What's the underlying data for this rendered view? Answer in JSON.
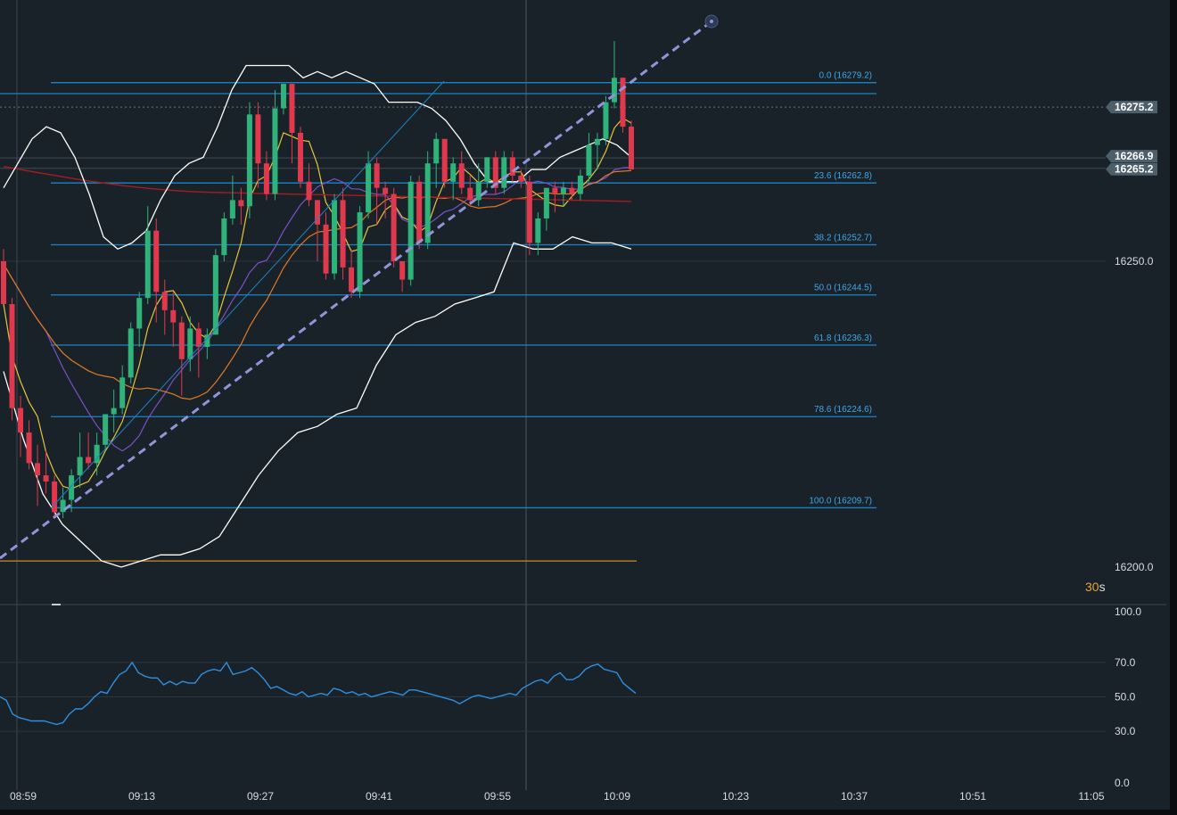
{
  "timer": {
    "value": "30",
    "unit": "s"
  },
  "colors": {
    "background": "#1a2229",
    "up": "#2fb37a",
    "down": "#e0394d",
    "fib": "#1d82c4",
    "bollinger": "#ffffff",
    "trendline": "#8f95d8",
    "rsi": "#2e8fe0",
    "ma_yellow": "#e5c53a",
    "ma_purple": "#7b4fc9",
    "ma_orange": "#e07a24",
    "ma_red": "#a21d22"
  },
  "chart_data": [
    {
      "type": "candlestick",
      "instrument_timeframe": "1 minute",
      "x_ticks": [
        "08:59",
        "09:13",
        "09:27",
        "09:41",
        "09:55",
        "10:09",
        "10:23",
        "10:37",
        "10:51",
        "11:05"
      ],
      "y_ticks": [
        "16250.0",
        "16200.0"
      ],
      "ylim": [
        16197,
        16297
      ],
      "price_tags": [
        {
          "label": "16275.2",
          "value": 16275.2
        },
        {
          "label": "16266.9",
          "value": 16266.9
        },
        {
          "label": "16265.2",
          "value": 16265.2
        }
      ],
      "fibonacci": [
        {
          "label": "0.0 (16279.2)",
          "value": 16279.2
        },
        {
          "label": "23.6 (16262.8)",
          "value": 16262.8
        },
        {
          "label": "38.2 (16252.7)",
          "value": 16252.7
        },
        {
          "label": "50.0 (16244.5)",
          "value": 16244.5
        },
        {
          "label": "61.8 (16236.3)",
          "value": 16236.3
        },
        {
          "label": "78.6 (16224.6)",
          "value": 16224.6
        },
        {
          "label": "100.0 (16209.7)",
          "value": 16209.7
        }
      ],
      "horizontal_lines": [
        16277.4,
        16201.0
      ],
      "candles": [
        {
          "o": 16250,
          "h": 16252,
          "l": 16243,
          "c": 16243
        },
        {
          "o": 16243,
          "h": 16244,
          "l": 16224,
          "c": 16226
        },
        {
          "o": 16226,
          "h": 16228,
          "l": 16218,
          "c": 16222
        },
        {
          "o": 16222,
          "h": 16224,
          "l": 16216,
          "c": 16217
        },
        {
          "o": 16217,
          "h": 16220,
          "l": 16210,
          "c": 16215
        },
        {
          "o": 16215,
          "h": 16219,
          "l": 16212,
          "c": 16214
        },
        {
          "o": 16214,
          "h": 16215,
          "l": 16208,
          "c": 16209
        },
        {
          "o": 16209,
          "h": 16213,
          "l": 16208,
          "c": 16211
        },
        {
          "o": 16211,
          "h": 16216,
          "l": 16209,
          "c": 16215
        },
        {
          "o": 16215,
          "h": 16222,
          "l": 16213,
          "c": 16218
        },
        {
          "o": 16218,
          "h": 16222,
          "l": 16216,
          "c": 16217
        },
        {
          "o": 16217,
          "h": 16222,
          "l": 16215,
          "c": 16220
        },
        {
          "o": 16220,
          "h": 16225,
          "l": 16219,
          "c": 16225
        },
        {
          "o": 16225,
          "h": 16229,
          "l": 16222,
          "c": 16226
        },
        {
          "o": 16226,
          "h": 16233,
          "l": 16225,
          "c": 16231
        },
        {
          "o": 16231,
          "h": 16240,
          "l": 16230,
          "c": 16239
        },
        {
          "o": 16239,
          "h": 16245,
          "l": 16236,
          "c": 16244
        },
        {
          "o": 16244,
          "h": 16259,
          "l": 16243,
          "c": 16255
        },
        {
          "o": 16255,
          "h": 16257,
          "l": 16240,
          "c": 16245
        },
        {
          "o": 16245,
          "h": 16247,
          "l": 16238,
          "c": 16242
        },
        {
          "o": 16242,
          "h": 16245,
          "l": 16236,
          "c": 16240
        },
        {
          "o": 16240,
          "h": 16241,
          "l": 16228,
          "c": 16234
        },
        {
          "o": 16234,
          "h": 16241,
          "l": 16232,
          "c": 16239
        },
        {
          "o": 16239,
          "h": 16240,
          "l": 16231,
          "c": 16236
        },
        {
          "o": 16236,
          "h": 16239,
          "l": 16234,
          "c": 16238
        },
        {
          "o": 16238,
          "h": 16252,
          "l": 16238,
          "c": 16251
        },
        {
          "o": 16251,
          "h": 16258,
          "l": 16250,
          "c": 16257
        },
        {
          "o": 16257,
          "h": 16264,
          "l": 16256,
          "c": 16260
        },
        {
          "o": 16260,
          "h": 16262,
          "l": 16256,
          "c": 16259
        },
        {
          "o": 16259,
          "h": 16276,
          "l": 16257,
          "c": 16274
        },
        {
          "o": 16274,
          "h": 16276,
          "l": 16262,
          "c": 16266
        },
        {
          "o": 16266,
          "h": 16268,
          "l": 16260,
          "c": 16261
        },
        {
          "o": 16261,
          "h": 16278,
          "l": 16260,
          "c": 16275
        },
        {
          "o": 16275,
          "h": 16279,
          "l": 16274,
          "c": 16279
        },
        {
          "o": 16279,
          "h": 16279,
          "l": 16266,
          "c": 16271
        },
        {
          "o": 16271,
          "h": 16272,
          "l": 16262,
          "c": 16263
        },
        {
          "o": 16263,
          "h": 16266,
          "l": 16259,
          "c": 16260
        },
        {
          "o": 16260,
          "h": 16260,
          "l": 16250,
          "c": 16256
        },
        {
          "o": 16256,
          "h": 16258,
          "l": 16247,
          "c": 16248
        },
        {
          "o": 16248,
          "h": 16261,
          "l": 16247,
          "c": 16260
        },
        {
          "o": 16260,
          "h": 16262,
          "l": 16247,
          "c": 16249
        },
        {
          "o": 16249,
          "h": 16252,
          "l": 16244,
          "c": 16245
        },
        {
          "o": 16245,
          "h": 16259,
          "l": 16244,
          "c": 16258
        },
        {
          "o": 16258,
          "h": 16268,
          "l": 16257,
          "c": 16266
        },
        {
          "o": 16266,
          "h": 16267,
          "l": 16256,
          "c": 16262
        },
        {
          "o": 16262,
          "h": 16263,
          "l": 16257,
          "c": 16261
        },
        {
          "o": 16261,
          "h": 16262,
          "l": 16249,
          "c": 16250
        },
        {
          "o": 16250,
          "h": 16250,
          "l": 16245,
          "c": 16247
        },
        {
          "o": 16247,
          "h": 16264,
          "l": 16246,
          "c": 16263
        },
        {
          "o": 16263,
          "h": 16264,
          "l": 16252,
          "c": 16253
        },
        {
          "o": 16253,
          "h": 16268,
          "l": 16252,
          "c": 16266
        },
        {
          "o": 16266,
          "h": 16271,
          "l": 16262,
          "c": 16270
        },
        {
          "o": 16270,
          "h": 16270,
          "l": 16262,
          "c": 16263
        },
        {
          "o": 16263,
          "h": 16267,
          "l": 16260,
          "c": 16266
        },
        {
          "o": 16266,
          "h": 16268,
          "l": 16261,
          "c": 16262
        },
        {
          "o": 16262,
          "h": 16264,
          "l": 16259,
          "c": 16260
        },
        {
          "o": 16260,
          "h": 16266,
          "l": 16259,
          "c": 16263
        },
        {
          "o": 16263,
          "h": 16267,
          "l": 16262,
          "c": 16267
        },
        {
          "o": 16267,
          "h": 16268,
          "l": 16261,
          "c": 16262
        },
        {
          "o": 16262,
          "h": 16268,
          "l": 16261,
          "c": 16267
        },
        {
          "o": 16267,
          "h": 16268,
          "l": 16263,
          "c": 16264
        },
        {
          "o": 16264,
          "h": 16265,
          "l": 16262,
          "c": 16263
        },
        {
          "o": 16263,
          "h": 16264,
          "l": 16251,
          "c": 16253
        },
        {
          "o": 16253,
          "h": 16258,
          "l": 16251,
          "c": 16257
        },
        {
          "o": 16257,
          "h": 16262,
          "l": 16255,
          "c": 16262
        },
        {
          "o": 16262,
          "h": 16263,
          "l": 16258,
          "c": 16261
        },
        {
          "o": 16261,
          "h": 16263,
          "l": 16259,
          "c": 16262
        },
        {
          "o": 16262,
          "h": 16263,
          "l": 16260,
          "c": 16261
        },
        {
          "o": 16261,
          "h": 16265,
          "l": 16260,
          "c": 16264
        },
        {
          "o": 16264,
          "h": 16271,
          "l": 16263,
          "c": 16269
        },
        {
          "o": 16269,
          "h": 16271,
          "l": 16265,
          "c": 16270
        },
        {
          "o": 16270,
          "h": 16277,
          "l": 16269,
          "c": 16276
        },
        {
          "o": 16276,
          "h": 16286,
          "l": 16275,
          "c": 16280
        },
        {
          "o": 16280,
          "h": 16280,
          "l": 16271,
          "c": 16272
        },
        {
          "o": 16272,
          "h": 16273,
          "l": 16265,
          "c": 16265
        }
      ],
      "bollinger_upper": [
        16262,
        16266,
        16270,
        16272,
        16271,
        16267,
        16261,
        16254,
        16252,
        16253,
        16255,
        16260,
        16264,
        16266,
        16267,
        16272,
        16278,
        16282,
        16282,
        16282,
        16282,
        16280,
        16281,
        16280,
        16281,
        16280,
        16279,
        16276,
        16276,
        16276,
        16275,
        16273,
        16270,
        16266,
        16263,
        16263,
        16263,
        16265,
        16265,
        16267,
        16268,
        16269,
        16270,
        16269,
        16267
      ],
      "bollinger_lower": [
        16232,
        16221,
        16212,
        16207,
        16204,
        16201,
        16200,
        16201,
        16202,
        16202,
        16203,
        16205,
        16210,
        16215,
        16219,
        16222,
        16223,
        16225,
        16226,
        16233,
        16238,
        16240,
        16241,
        16243,
        16244,
        16245,
        16253,
        16252,
        16252,
        16254,
        16253,
        16253,
        16252
      ],
      "rsi": {
        "y_ticks": [
          "100.0",
          "70.0",
          "50.0",
          "30.0",
          "0.0"
        ],
        "ylim": [
          0,
          100
        ],
        "levels": [
          70,
          50,
          30
        ],
        "values": [
          50,
          48,
          40,
          38,
          37,
          36,
          36,
          36,
          35,
          34,
          35,
          40,
          43,
          43,
          46,
          50,
          53,
          52,
          58,
          63,
          65,
          70,
          64,
          62,
          61,
          61,
          57,
          59,
          57,
          59,
          58,
          58,
          63,
          65,
          66,
          65,
          70,
          63,
          64,
          65,
          67,
          64,
          60,
          55,
          56,
          54,
          52,
          51,
          53,
          50,
          51,
          52,
          51,
          55,
          54,
          52,
          53,
          51,
          52,
          50,
          51,
          52,
          53,
          52,
          51,
          54,
          54,
          53,
          52,
          51,
          50,
          49,
          48,
          46,
          48,
          50,
          51,
          50,
          49,
          50,
          51,
          52,
          51,
          55,
          57,
          59,
          60,
          58,
          62,
          64,
          60,
          60,
          62,
          66,
          68,
          69,
          66,
          65,
          64,
          58,
          55,
          52
        ]
      }
    }
  ]
}
